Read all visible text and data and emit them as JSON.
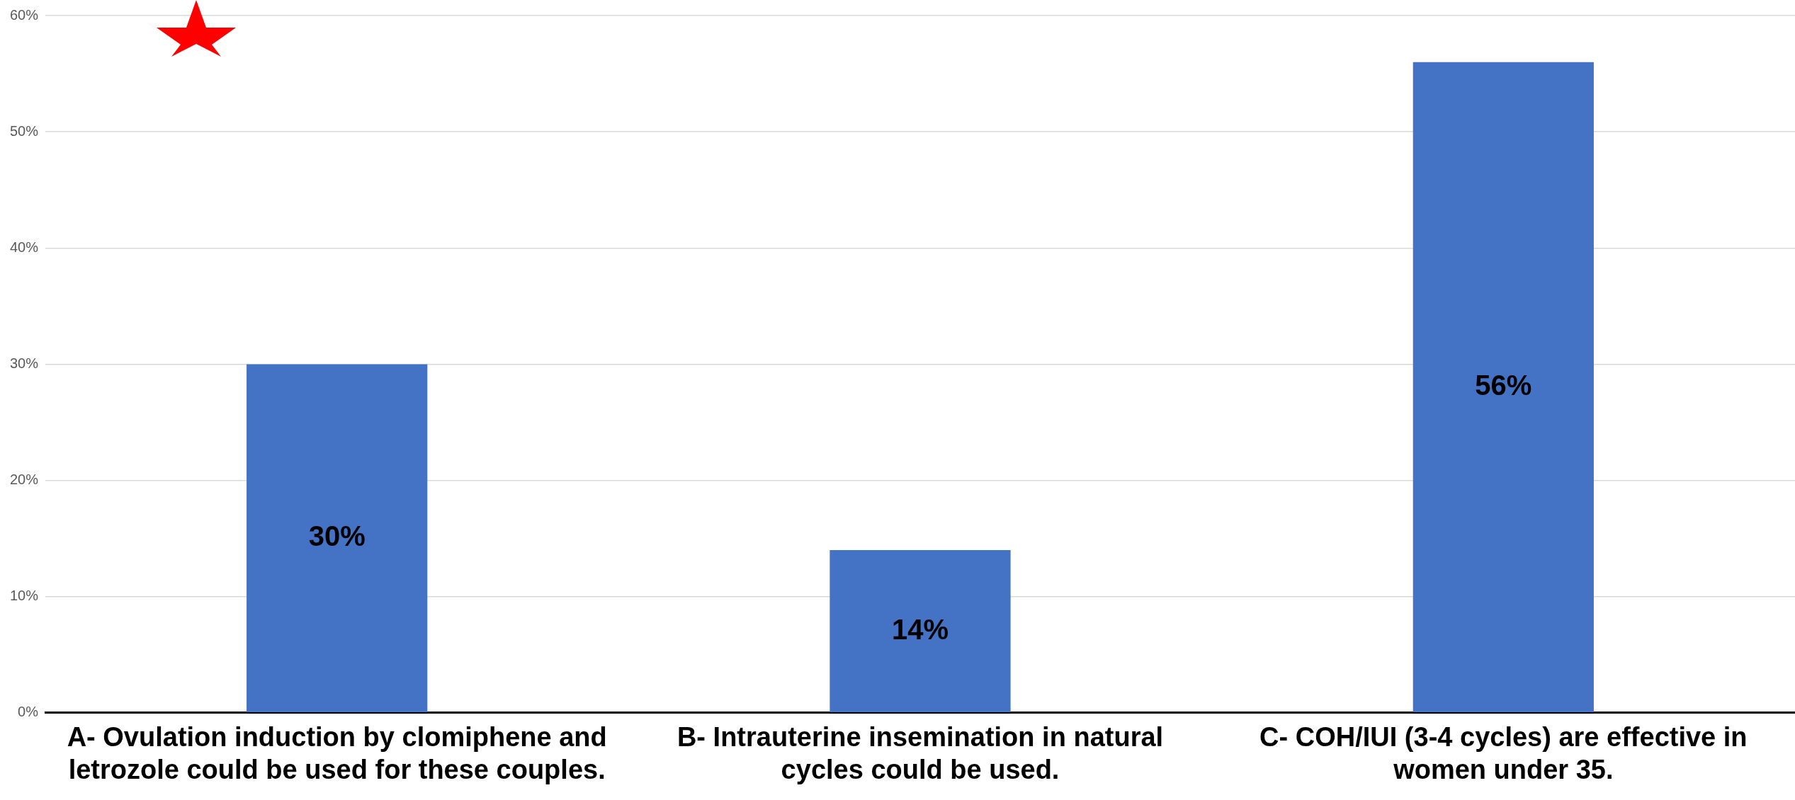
{
  "chart_data": {
    "type": "bar",
    "categories": [
      "A- Ovulation induction by clomiphene and letrozole could be used for these couples.",
      "B- Intrauterine insemination in natural cycles could be used.",
      "C- COH/IUI (3-4 cycles) are effective in women under 35."
    ],
    "values": [
      30,
      14,
      56
    ],
    "color": "#4472c4",
    "value_labels": [
      "30%",
      "14%",
      "56%"
    ],
    "ylim": [
      0,
      60
    ],
    "yticks": [
      {
        "value": 0,
        "label": "0%"
      },
      {
        "value": 10,
        "label": "10%"
      },
      {
        "value": 20,
        "label": "20%"
      },
      {
        "value": 30,
        "label": "30%"
      },
      {
        "value": 40,
        "label": "40%"
      },
      {
        "value": 50,
        "label": "50%"
      },
      {
        "value": 60,
        "label": "60%"
      }
    ],
    "grid": "y",
    "legend": false
  }
}
